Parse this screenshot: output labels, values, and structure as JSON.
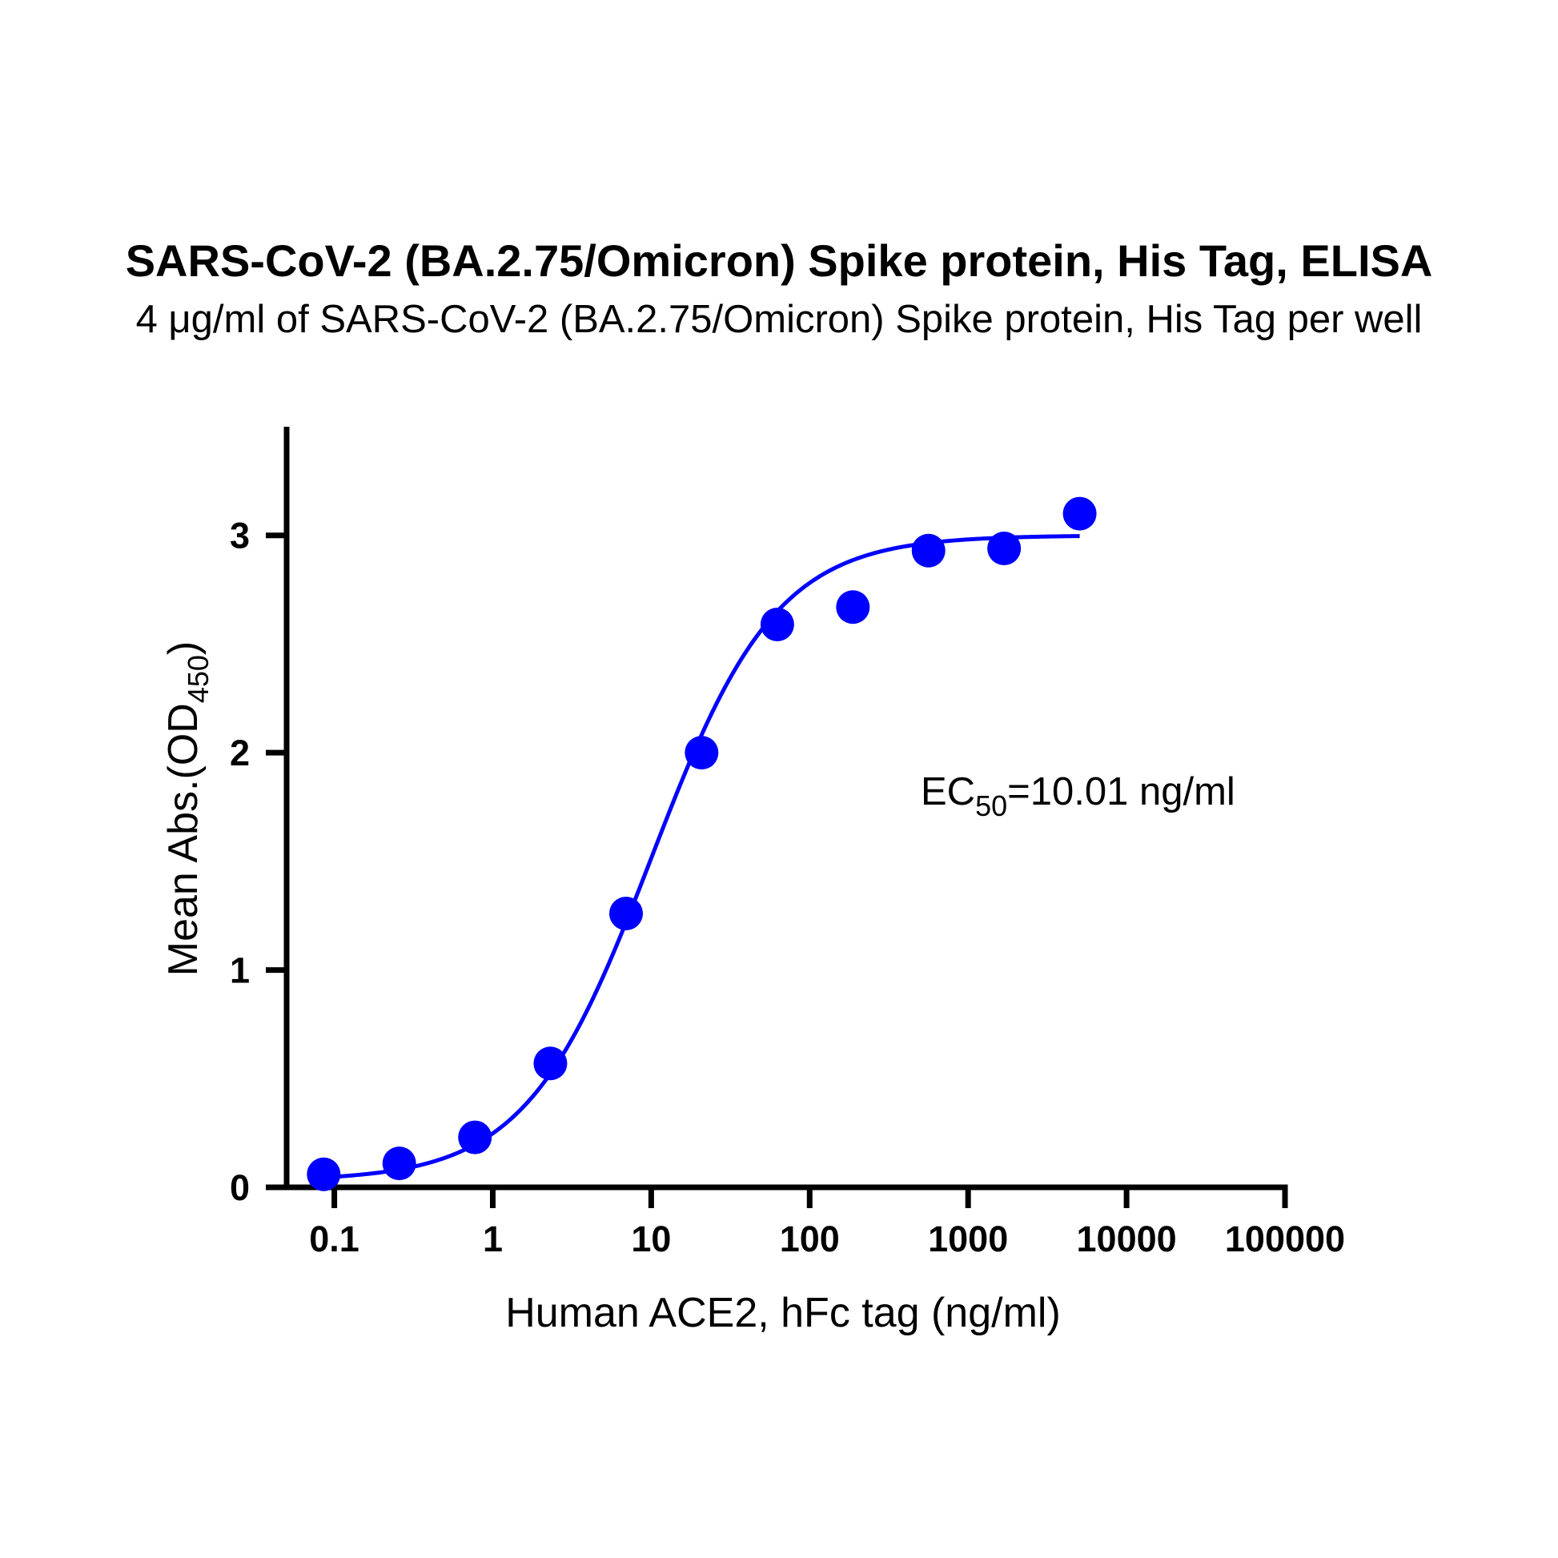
{
  "chart_data": {
    "type": "scatter",
    "title": "SARS-CoV-2 (BA.2.75/Omicron) Spike protein, His Tag, ELISA",
    "subtitle": "4 μg/ml of SARS-CoV-2 (BA.2.75/Omicron) Spike protein, His Tag per well",
    "xlabel": "Human ACE2, hFc tag (ng/ml)",
    "ylabel": {
      "main": "Mean Abs.(OD",
      "sub": "450",
      "close": ")"
    },
    "x_scale": "log",
    "xlim": [
      0.05,
      100000
    ],
    "ylim": [
      0,
      3.5
    ],
    "x_ticks": [
      {
        "value": 0.1,
        "label": "0.1"
      },
      {
        "value": 1,
        "label": "1"
      },
      {
        "value": 10,
        "label": "10"
      },
      {
        "value": 100,
        "label": "100"
      },
      {
        "value": 1000,
        "label": "1000"
      },
      {
        "value": 10000,
        "label": "10000"
      },
      {
        "value": 100000,
        "label": "100000"
      }
    ],
    "y_ticks": [
      {
        "value": 0,
        "label": "0"
      },
      {
        "value": 1,
        "label": "1"
      },
      {
        "value": 2,
        "label": "2"
      },
      {
        "value": 3,
        "label": "3"
      }
    ],
    "grid": false,
    "legend": "none",
    "series": [
      {
        "x": [
          0.0857,
          0.257,
          0.772,
          2.31,
          6.94,
          20.8,
          62.5,
          187.5,
          562.5,
          1687.5,
          5062.5
        ],
        "y": [
          0.06,
          0.11,
          0.23,
          0.57,
          1.26,
          2.0,
          2.59,
          2.67,
          2.93,
          2.94,
          3.1
        ],
        "color": "#0000FF"
      }
    ],
    "fit_curve": {
      "model": "4PL",
      "bottom": 0.03,
      "top": 3.0,
      "ec50": 10.01,
      "hill": 1.1,
      "x_range": [
        0.0857,
        5062.5
      ],
      "color": "#0000FF"
    },
    "annotation": {
      "prefix": "EC",
      "sub": "50",
      "suffix": "=10.01 ng/ml"
    }
  }
}
